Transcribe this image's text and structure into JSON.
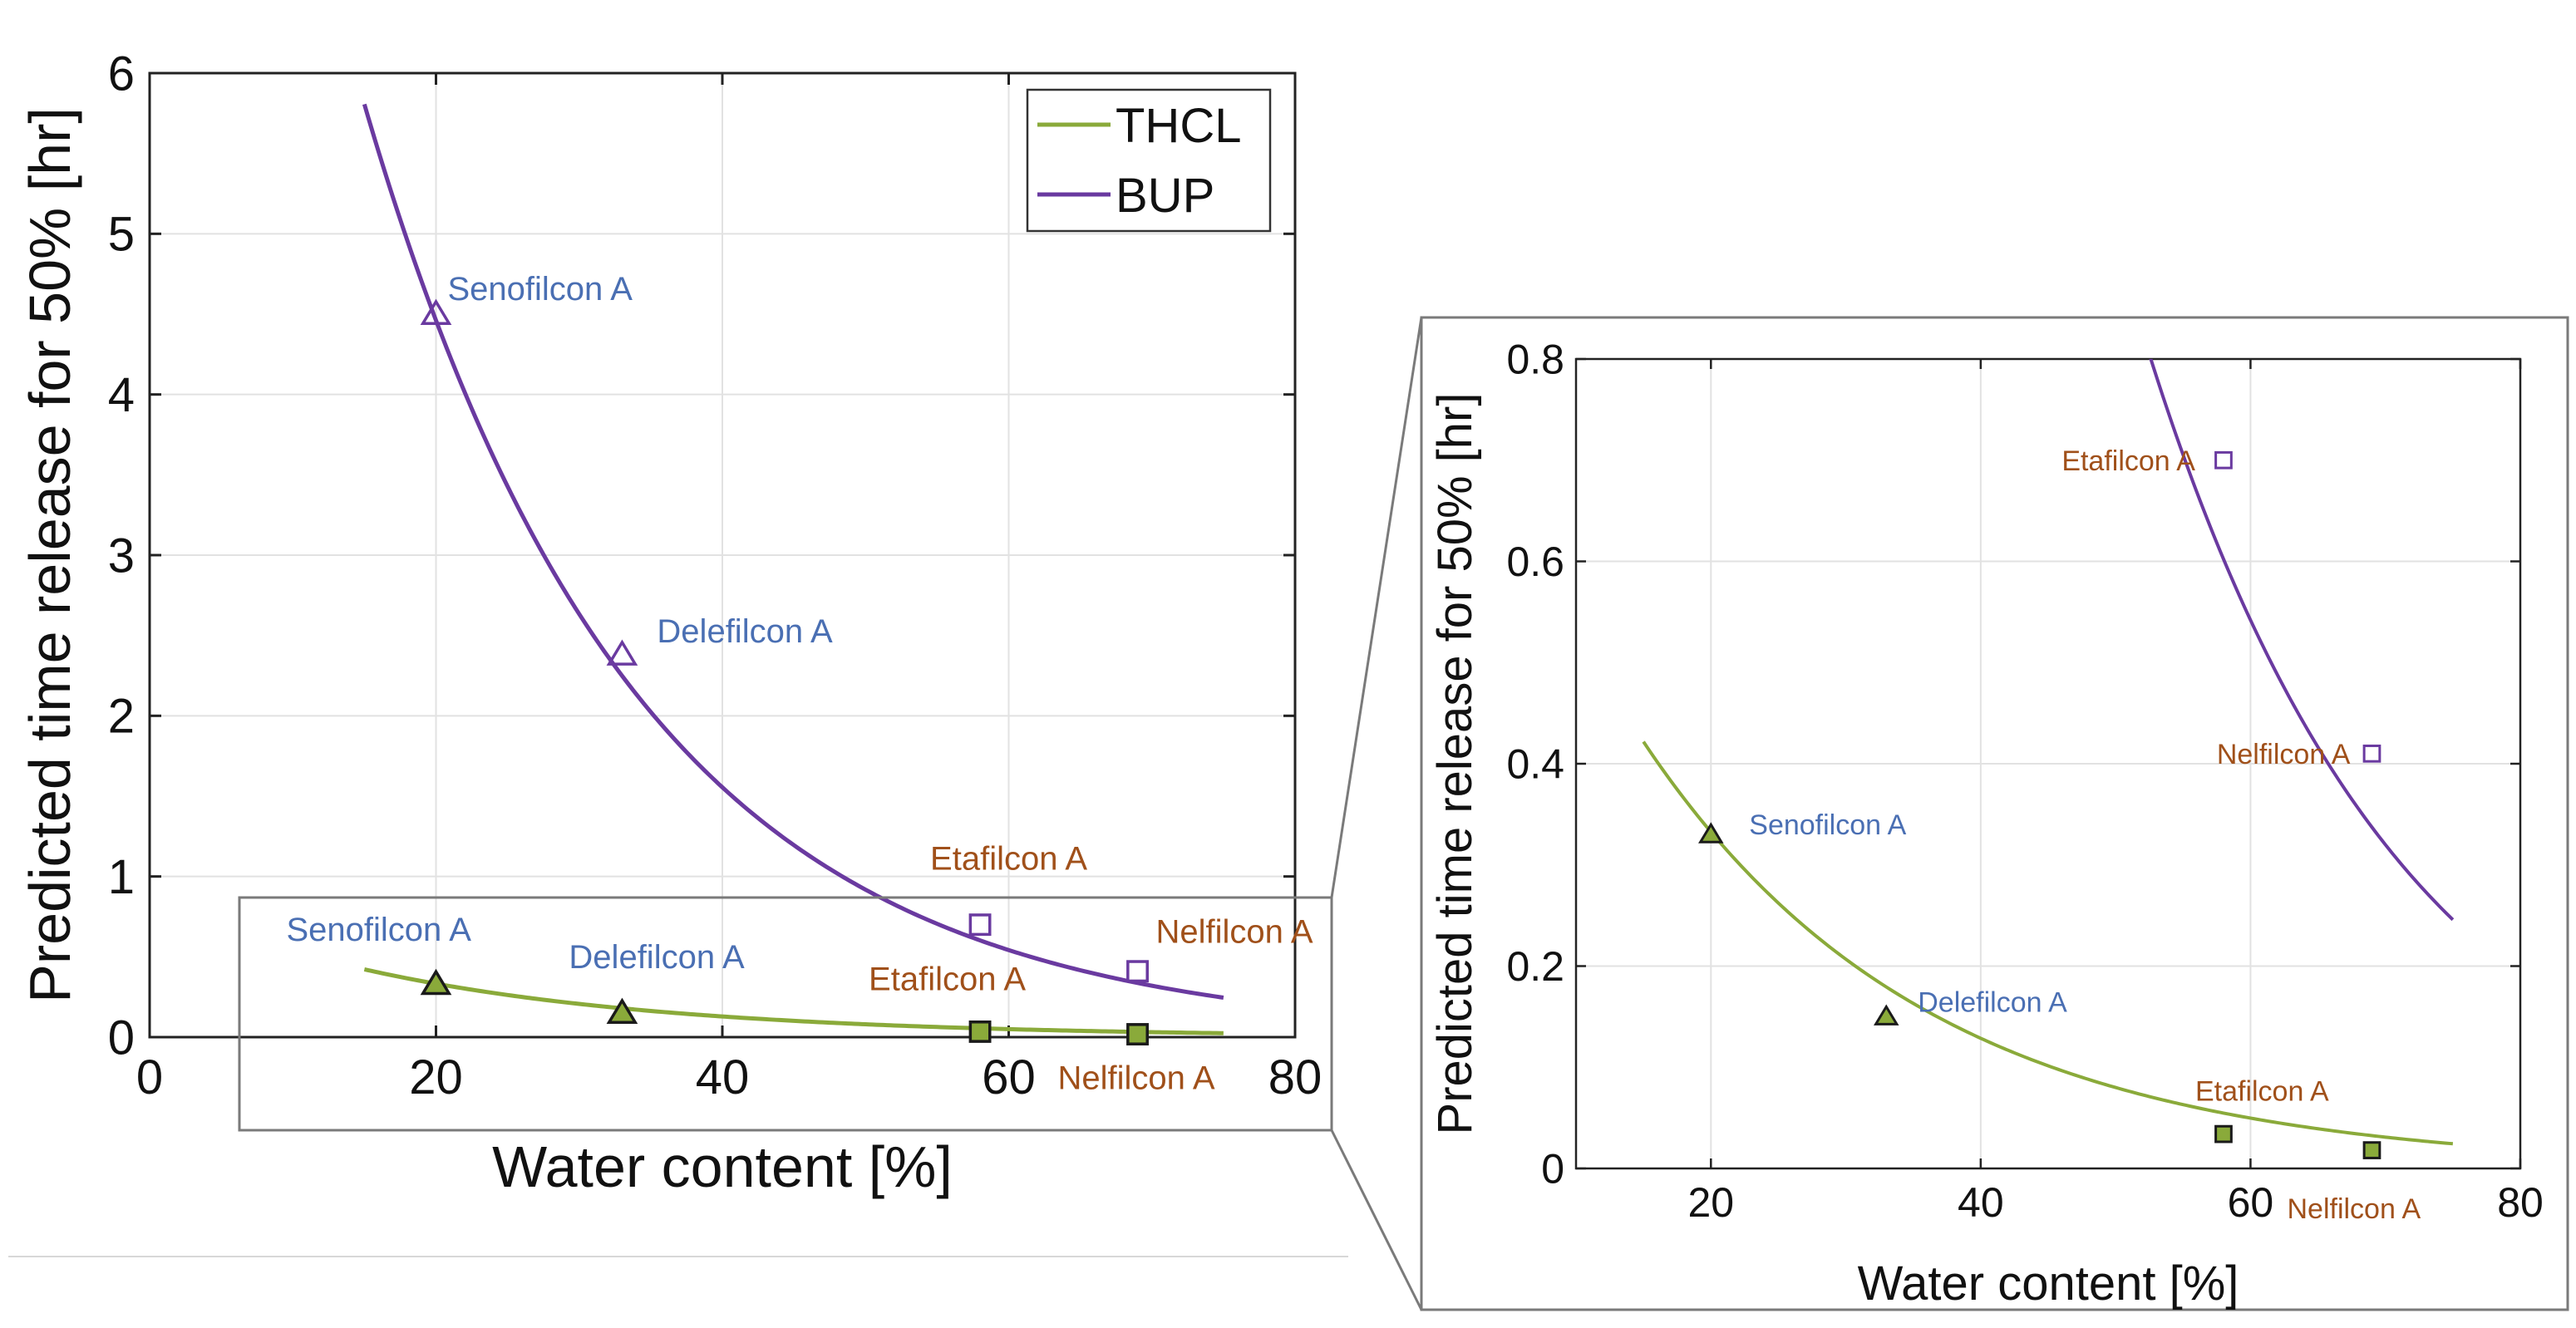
{
  "colors": {
    "thcl": "#8aaa3a",
    "bup": "#6a3aa0",
    "label_blue": "#4a6fb3",
    "label_orange": "#a0501a",
    "axis": "#222222",
    "grid": "#e2e2e2",
    "zoom_frame": "#7a7a7a"
  },
  "chart_data": [
    {
      "type": "line",
      "xlabel": "Water content [%]",
      "ylabel": "Predicted time release for 50% [hr]",
      "xlim": [
        0,
        80
      ],
      "ylim": [
        0,
        6
      ],
      "xticks": [
        "0",
        "20",
        "40",
        "60",
        "80"
      ],
      "yticks": [
        "0",
        "1",
        "2",
        "3",
        "4",
        "5",
        "6"
      ],
      "grid": true,
      "legend": {
        "position": "top-right",
        "entries": [
          "THCL",
          "BUP"
        ]
      },
      "series": [
        {
          "name": "THCL",
          "x_range": [
            15,
            75
          ],
          "curve": {
            "a": 0.86,
            "b": 0.0475
          },
          "points": [
            {
              "lens": "Senofilcon A",
              "x": 20,
              "y": 0.33
            },
            {
              "lens": "Delefilcon A",
              "x": 33,
              "y": 0.15
            },
            {
              "lens": "Etafilcon A",
              "x": 58,
              "y": 0.034
            },
            {
              "lens": "Nelfilcon A",
              "x": 69,
              "y": 0.018
            }
          ]
        },
        {
          "name": "BUP",
          "x_range": [
            15,
            75
          ],
          "curve": {
            "a": 12.8,
            "b": 0.0527
          },
          "points": [
            {
              "lens": "Senofilcon A",
              "x": 20,
              "y": 4.5
            },
            {
              "lens": "Delefilcon A",
              "x": 33,
              "y": 2.38
            },
            {
              "lens": "Etafilcon A",
              "x": 58,
              "y": 0.7
            },
            {
              "lens": "Nelfilcon A",
              "x": 69,
              "y": 0.41
            }
          ]
        }
      ],
      "annotations": [
        {
          "text": "Senofilcon A",
          "series": "BUP",
          "x": 20,
          "y": 4.5,
          "color": "blue"
        },
        {
          "text": "Delefilcon A",
          "series": "BUP",
          "x": 33,
          "y": 2.38,
          "color": "blue"
        },
        {
          "text": "Etafilcon A",
          "series": "BUP",
          "x": 58,
          "y": 0.7,
          "color": "orange"
        },
        {
          "text": "Nelfilcon A",
          "series": "BUP",
          "x": 69,
          "y": 0.41,
          "color": "orange"
        },
        {
          "text": "Senofilcon A",
          "series": "THCL",
          "x": 20,
          "y": 0.33,
          "color": "blue"
        },
        {
          "text": "Delefilcon A",
          "series": "THCL",
          "x": 33,
          "y": 0.15,
          "color": "blue"
        },
        {
          "text": "Etafilcon A",
          "series": "THCL",
          "x": 58,
          "y": 0.034,
          "color": "orange"
        },
        {
          "text": "Nelfilcon A",
          "series": "THCL",
          "x": 69,
          "y": 0.018,
          "color": "orange"
        }
      ]
    },
    {
      "type": "line",
      "xlabel": "Water content [%]",
      "ylabel": "Predicted time release for 50% [hr]",
      "xlim": [
        10,
        80
      ],
      "ylim": [
        0,
        0.8
      ],
      "xticks": [
        "20",
        "40",
        "60",
        "80"
      ],
      "yticks": [
        "0",
        "0.2",
        "0.4",
        "0.6",
        "0.8"
      ],
      "grid": true,
      "series": [
        {
          "name": "THCL",
          "x_range": [
            15,
            75
          ],
          "curve": {
            "a": 0.86,
            "b": 0.0475
          },
          "points": [
            {
              "lens": "Senofilcon A",
              "x": 20,
              "y": 0.33
            },
            {
              "lens": "Delefilcon A",
              "x": 33,
              "y": 0.15
            },
            {
              "lens": "Etafilcon A",
              "x": 58,
              "y": 0.034
            },
            {
              "lens": "Nelfilcon A",
              "x": 69,
              "y": 0.018
            }
          ]
        },
        {
          "name": "BUP",
          "x_range": [
            15,
            75
          ],
          "curve": {
            "a": 12.8,
            "b": 0.0527
          },
          "points": [
            {
              "lens": "Etafilcon A",
              "x": 58,
              "y": 0.7
            },
            {
              "lens": "Nelfilcon A",
              "x": 69,
              "y": 0.41
            }
          ]
        }
      ],
      "annotations": [
        {
          "text": "Etafilcon A",
          "series": "BUP",
          "x": 58,
          "y": 0.7,
          "color": "orange"
        },
        {
          "text": "Nelfilcon A",
          "series": "BUP",
          "x": 69,
          "y": 0.41,
          "color": "orange"
        },
        {
          "text": "Senofilcon A",
          "series": "THCL",
          "x": 20,
          "y": 0.33,
          "color": "blue"
        },
        {
          "text": "Delefilcon A",
          "series": "THCL",
          "x": 33,
          "y": 0.15,
          "color": "blue"
        },
        {
          "text": "Etafilcon A",
          "series": "THCL",
          "x": 58,
          "y": 0.034,
          "color": "orange"
        },
        {
          "text": "Nelfilcon A",
          "series": "THCL",
          "x": 69,
          "y": 0.018,
          "color": "orange"
        }
      ]
    }
  ]
}
